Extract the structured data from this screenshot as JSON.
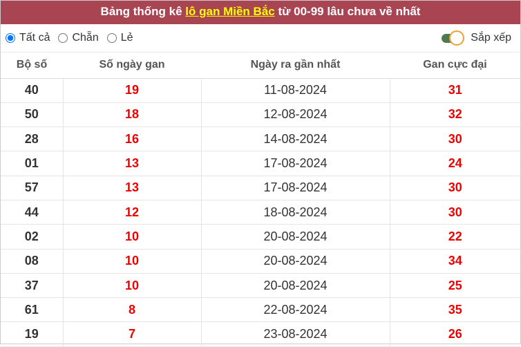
{
  "title": {
    "prefix": "Bảng thống kê ",
    "link": "lô gan Miền Bắc",
    "suffix": " từ 00-99 lâu chưa về nhất"
  },
  "filters": {
    "options": [
      "Tất cả",
      "Chẵn",
      "Lẻ"
    ],
    "selected": "Tất cả",
    "sort_label": "Sắp xếp",
    "sort_on": true
  },
  "table": {
    "headers": [
      "Bộ số",
      "Số ngày gan",
      "Ngày ra gần nhất",
      "Gan cực đại"
    ],
    "rows": [
      [
        "40",
        "19",
        "11-08-2024",
        "31"
      ],
      [
        "50",
        "18",
        "12-08-2024",
        "32"
      ],
      [
        "28",
        "16",
        "14-08-2024",
        "30"
      ],
      [
        "01",
        "13",
        "17-08-2024",
        "24"
      ],
      [
        "57",
        "13",
        "17-08-2024",
        "30"
      ],
      [
        "44",
        "12",
        "18-08-2024",
        "30"
      ],
      [
        "02",
        "10",
        "20-08-2024",
        "22"
      ],
      [
        "08",
        "10",
        "20-08-2024",
        "34"
      ],
      [
        "37",
        "10",
        "20-08-2024",
        "25"
      ],
      [
        "61",
        "8",
        "22-08-2024",
        "35"
      ],
      [
        "19",
        "7",
        "23-08-2024",
        "26"
      ]
    ]
  },
  "colors": {
    "header_bg": "#a94553",
    "link": "#ffff00",
    "value_red": "#ee0000",
    "toggle_track": "#4f7a4f",
    "toggle_knob_border": "#f0a030"
  }
}
